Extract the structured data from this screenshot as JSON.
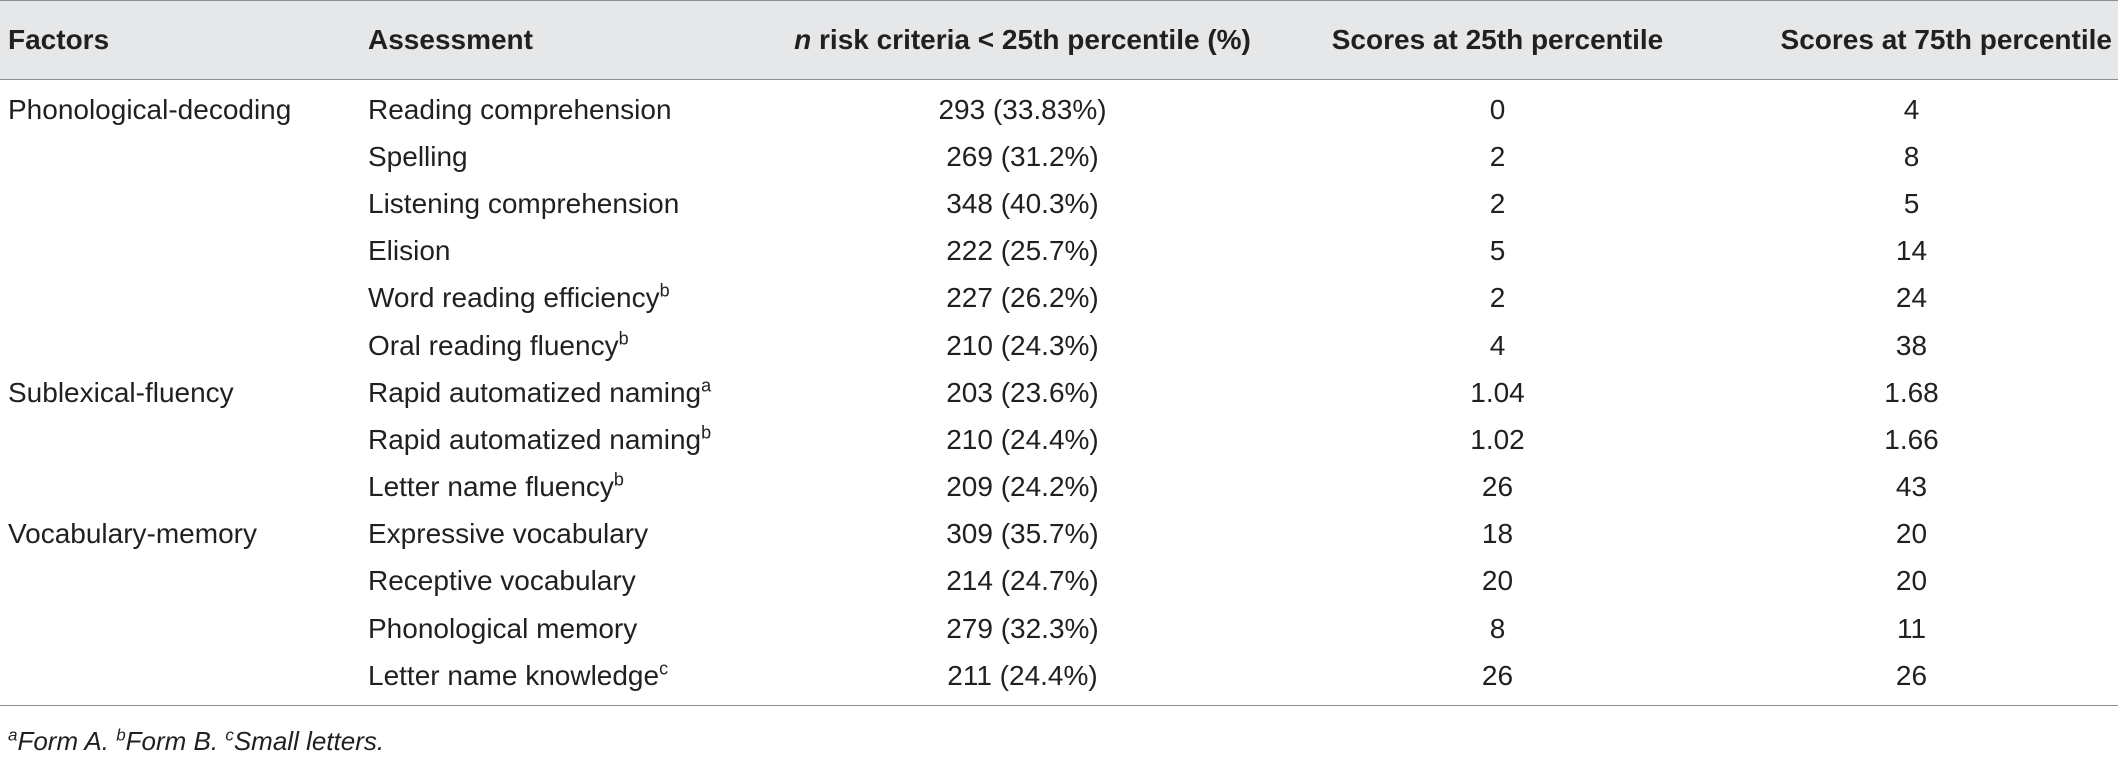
{
  "table": {
    "headers": {
      "factors": "Factors",
      "assessment": "Assessment",
      "risk_n": "n",
      "risk_rest": " risk criteria < 25th percentile (%)",
      "p25": "Scores at 25th percentile",
      "p75": "Scores at 75th percentile"
    },
    "rows": [
      {
        "factor": "Phonological-decoding",
        "assessment": "Reading comprehension",
        "sup": "",
        "risk": "293 (33.83%)",
        "p25": "0",
        "p75": "4"
      },
      {
        "factor": "",
        "assessment": "Spelling",
        "sup": "",
        "risk": "269 (31.2%)",
        "p25": "2",
        "p75": "8"
      },
      {
        "factor": "",
        "assessment": "Listening comprehension",
        "sup": "",
        "risk": "348 (40.3%)",
        "p25": "2",
        "p75": "5"
      },
      {
        "factor": "",
        "assessment": "Elision",
        "sup": "",
        "risk": "222 (25.7%)",
        "p25": "5",
        "p75": "14"
      },
      {
        "factor": "",
        "assessment": "Word reading efficiency",
        "sup": "b",
        "risk": "227 (26.2%)",
        "p25": "2",
        "p75": "24"
      },
      {
        "factor": "",
        "assessment": "Oral reading fluency",
        "sup": "b",
        "risk": "210 (24.3%)",
        "p25": "4",
        "p75": "38"
      },
      {
        "factor": "Sublexical-fluency",
        "assessment": "Rapid automatized naming",
        "sup": "a",
        "risk": "203 (23.6%)",
        "p25": "1.04",
        "p75": "1.68"
      },
      {
        "factor": "",
        "assessment": "Rapid automatized naming",
        "sup": "b",
        "risk": "210 (24.4%)",
        "p25": "1.02",
        "p75": "1.66"
      },
      {
        "factor": "",
        "assessment": "Letter name fluency",
        "sup": "b",
        "risk": "209 (24.2%)",
        "p25": "26",
        "p75": "43"
      },
      {
        "factor": "Vocabulary-memory",
        "assessment": "Expressive vocabulary",
        "sup": "",
        "risk": "309 (35.7%)",
        "p25": "18",
        "p75": "20"
      },
      {
        "factor": "",
        "assessment": "Receptive vocabulary",
        "sup": "",
        "risk": "214 (24.7%)",
        "p25": "20",
        "p75": "20"
      },
      {
        "factor": "",
        "assessment": "Phonological memory",
        "sup": "",
        "risk": "279 (32.3%)",
        "p25": "8",
        "p75": "11"
      },
      {
        "factor": "",
        "assessment": "Letter name knowledge",
        "sup": "c",
        "risk": "211 (24.4%)",
        "p25": "26",
        "p75": "26"
      }
    ]
  },
  "footnotes": [
    {
      "mark": "a",
      "text": "Form A. "
    },
    {
      "mark": "b",
      "text": "Form B. "
    },
    {
      "mark": "c",
      "text": "Small letters."
    }
  ],
  "colors": {
    "header_background": "#e6e7e8",
    "rule": "#8a8c8e",
    "text": "#231f20"
  }
}
